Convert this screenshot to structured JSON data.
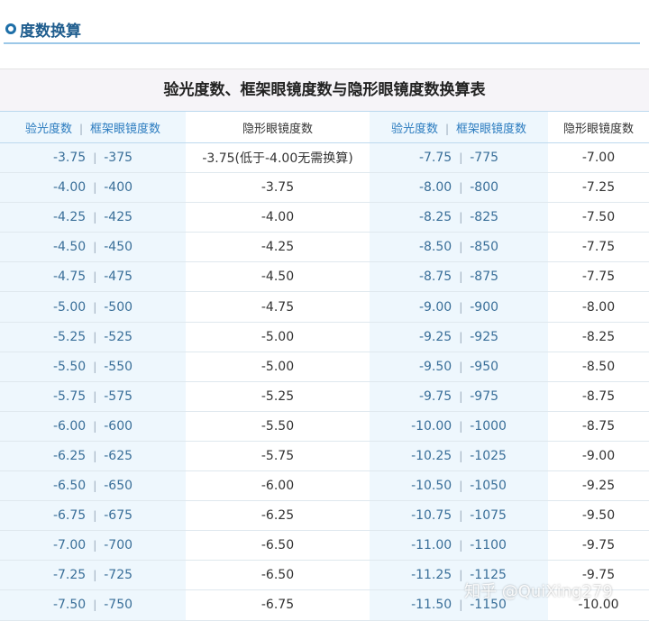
{
  "header": {
    "title": "度数换算"
  },
  "table": {
    "caption": "验光度数、框架眼镜度数与隐形眼镜度数换算表",
    "headers": {
      "left_pair": {
        "a": "验光度数",
        "b": "框架眼镜度数"
      },
      "left_contact": "隐形眼镜度数",
      "right_pair": {
        "a": "验光度数",
        "b": "框架眼镜度数"
      },
      "right_contact": "隐形眼镜度数"
    },
    "rows": [
      {
        "l1": "-3.75",
        "l2": "-375",
        "l3": "-3.75(低于-4.00无需换算)",
        "r1": "-7.75",
        "r2": "-775",
        "r3": "-7.00"
      },
      {
        "l1": "-4.00",
        "l2": "-400",
        "l3": "-3.75",
        "r1": "-8.00",
        "r2": "-800",
        "r3": "-7.25"
      },
      {
        "l1": "-4.25",
        "l2": "-425",
        "l3": "-4.00",
        "r1": "-8.25",
        "r2": "-825",
        "r3": "-7.50"
      },
      {
        "l1": "-4.50",
        "l2": "-450",
        "l3": "-4.25",
        "r1": "-8.50",
        "r2": "-850",
        "r3": "-7.75"
      },
      {
        "l1": "-4.75",
        "l2": "-475",
        "l3": "-4.50",
        "r1": "-8.75",
        "r2": "-875",
        "r3": "-7.75"
      },
      {
        "l1": "-5.00",
        "l2": "-500",
        "l3": "-4.75",
        "r1": "-9.00",
        "r2": "-900",
        "r3": "-8.00"
      },
      {
        "l1": "-5.25",
        "l2": "-525",
        "l3": "-5.00",
        "r1": "-9.25",
        "r2": "-925",
        "r3": "-8.25"
      },
      {
        "l1": "-5.50",
        "l2": "-550",
        "l3": "-5.00",
        "r1": "-9.50",
        "r2": "-950",
        "r3": "-8.50"
      },
      {
        "l1": "-5.75",
        "l2": "-575",
        "l3": "-5.25",
        "r1": "-9.75",
        "r2": "-975",
        "r3": "-8.75"
      },
      {
        "l1": "-6.00",
        "l2": "-600",
        "l3": "-5.50",
        "r1": "-10.00",
        "r2": "-1000",
        "r3": "-8.75"
      },
      {
        "l1": "-6.25",
        "l2": "-625",
        "l3": "-5.75",
        "r1": "-10.25",
        "r2": "-1025",
        "r3": "-9.00"
      },
      {
        "l1": "-6.50",
        "l2": "-650",
        "l3": "-6.00",
        "r1": "-10.50",
        "r2": "-1050",
        "r3": "-9.25"
      },
      {
        "l1": "-6.75",
        "l2": "-675",
        "l3": "-6.25",
        "r1": "-10.75",
        "r2": "-1075",
        "r3": "-9.50"
      },
      {
        "l1": "-7.00",
        "l2": "-700",
        "l3": "-6.50",
        "r1": "-11.00",
        "r2": "-1100",
        "r3": "-9.75"
      },
      {
        "l1": "-7.25",
        "l2": "-725",
        "l3": "-6.50",
        "r1": "-11.25",
        "r2": "-1125",
        "r3": "-9.75"
      },
      {
        "l1": "-7.50",
        "l2": "-750",
        "l3": "-6.75",
        "r1": "-11.50",
        "r2": "-1150",
        "r3": "-10.00"
      }
    ]
  },
  "watermark": "知乎 @QuiXing279",
  "colors": {
    "accent": "#1f5d8e",
    "header_cell_text": "#2a7bbf",
    "light_column_bg": "#eef7fd",
    "header_line": "#9cc8e8"
  }
}
